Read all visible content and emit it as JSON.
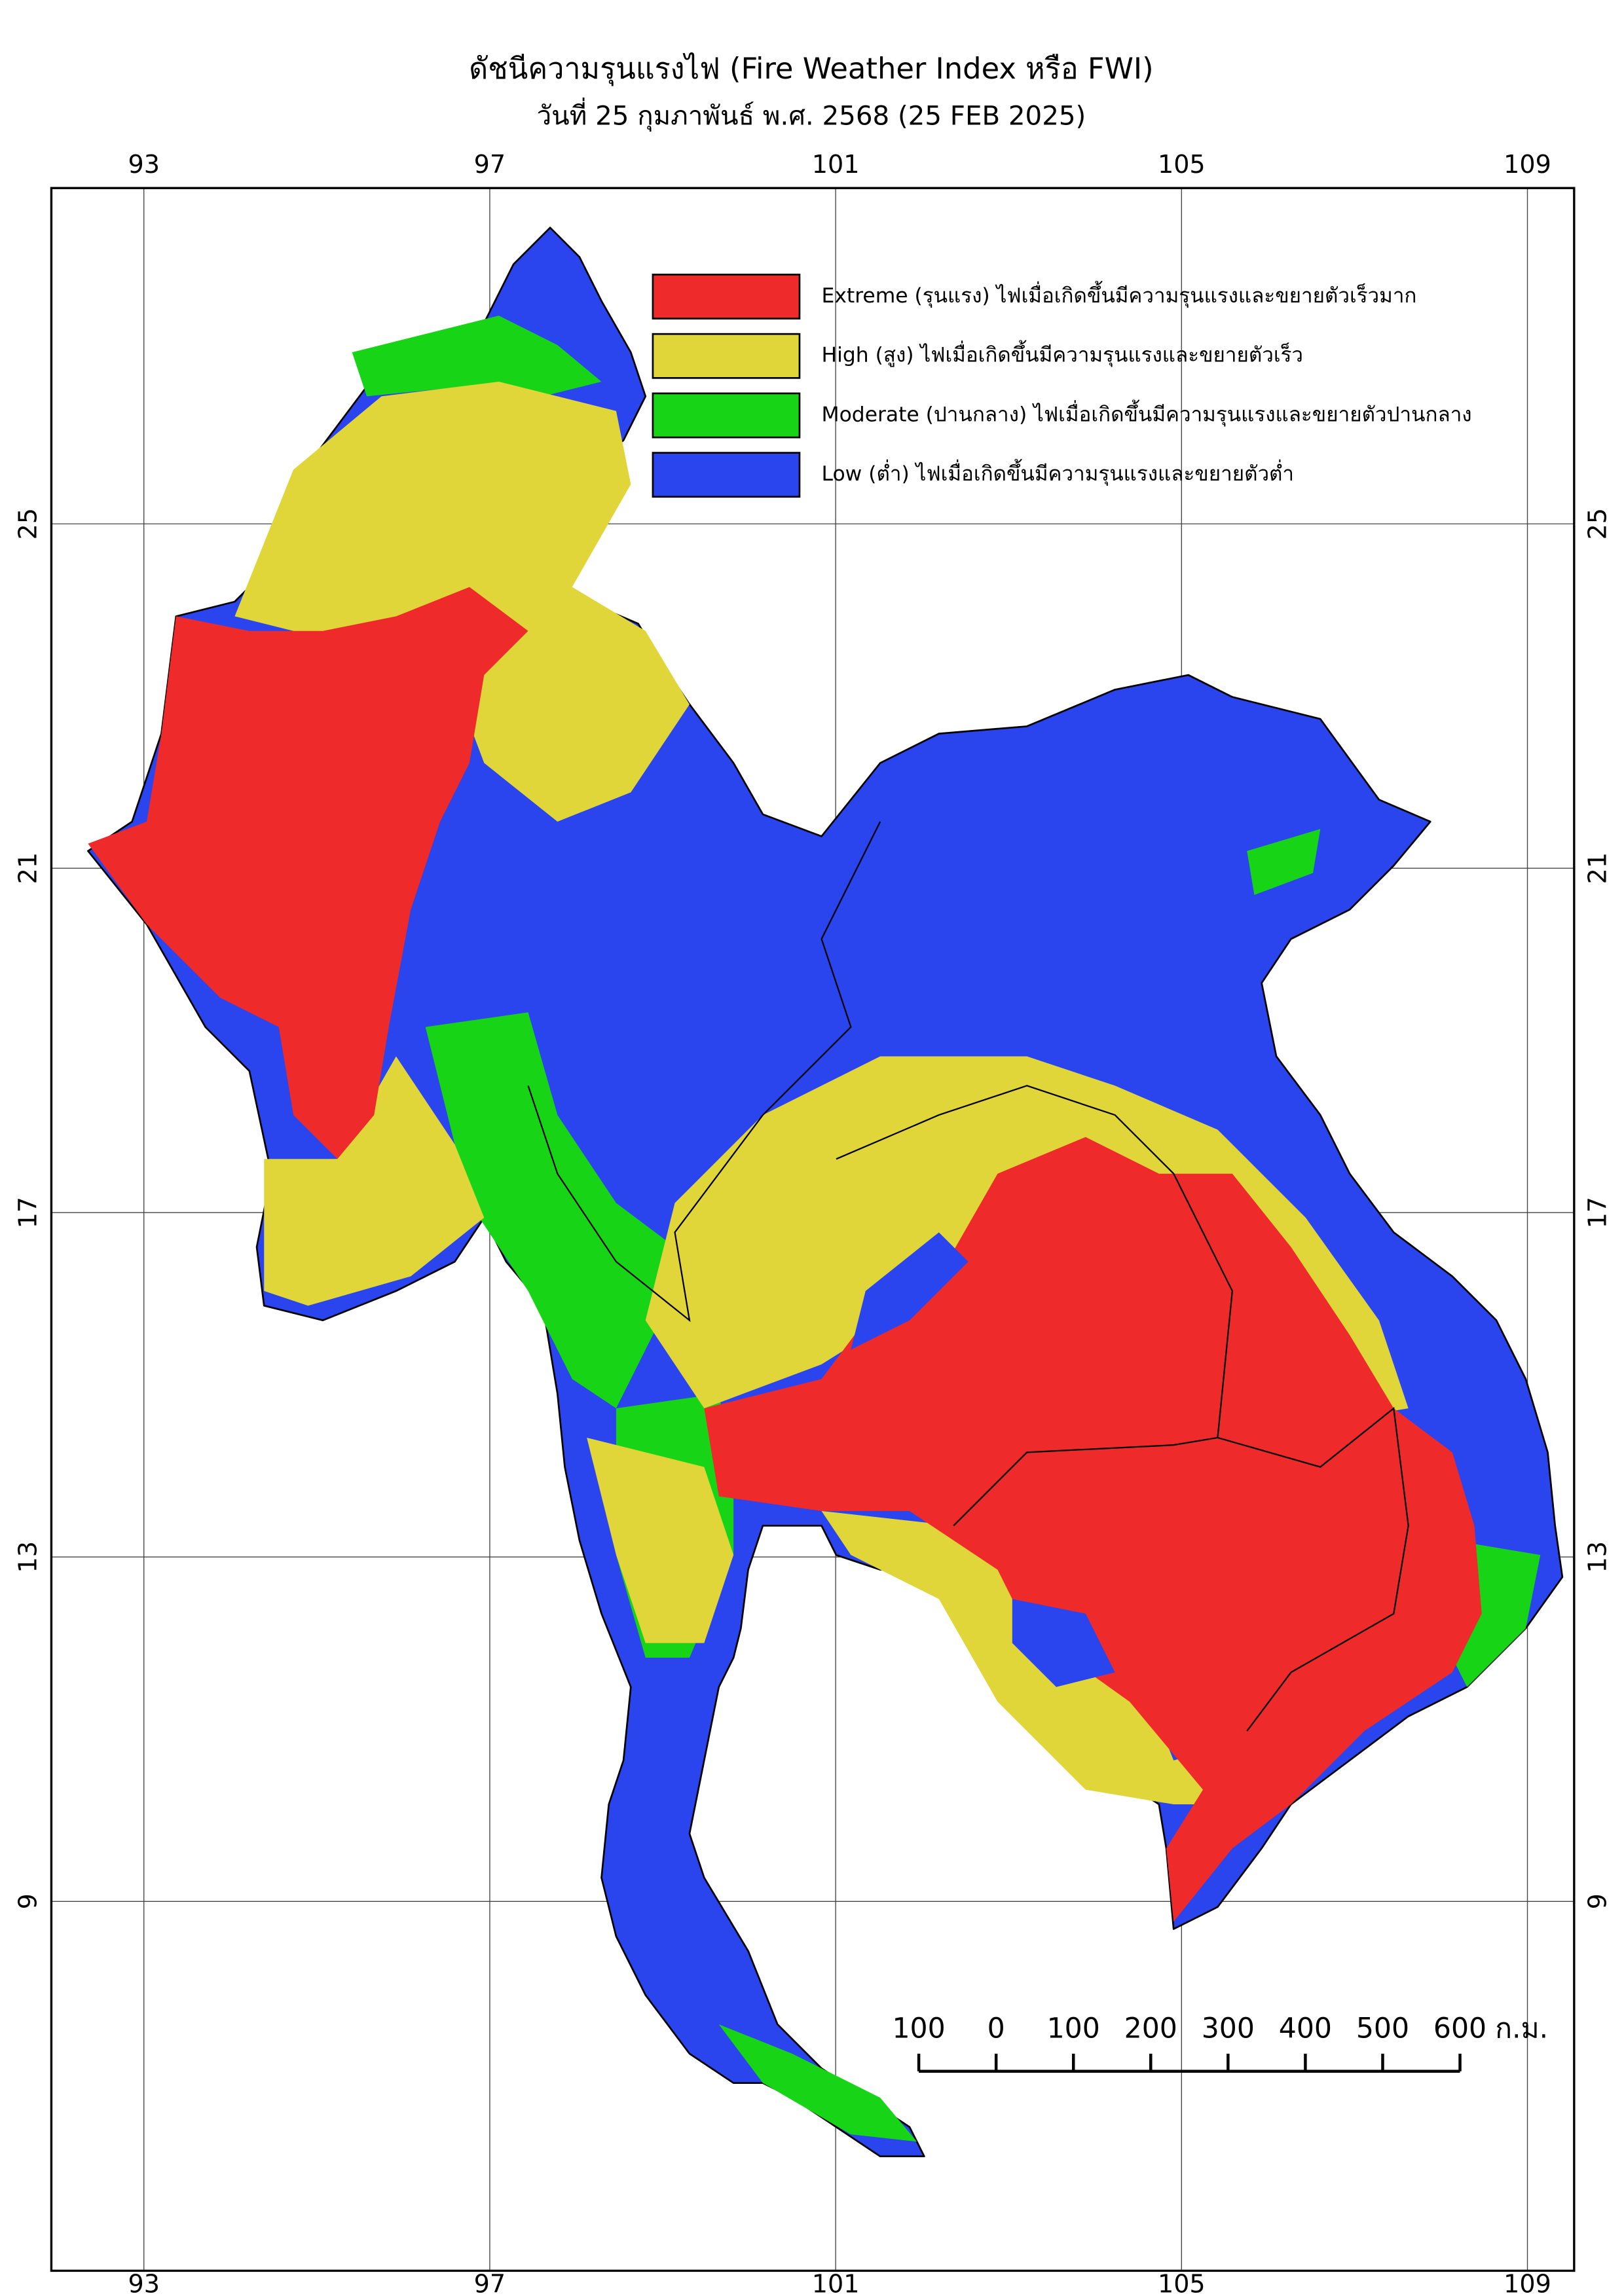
{
  "header": {
    "title": "ดัชนีความรุนแรงไฟ (Fire Weather Index หรือ FWI)",
    "subtitle": "วันที่ 25 กุมภาพันธ์ พ.ศ. 2568 (25 FEB 2025)"
  },
  "map": {
    "xlim": [
      91.93,
      109.54
    ],
    "ylim": [
      4.71,
      28.9
    ],
    "xticks": [
      93,
      97,
      101,
      105,
      109
    ],
    "yticks": [
      9,
      13,
      17,
      21,
      25
    ],
    "grid": true
  },
  "legend": [
    {
      "label": "Extreme (รุนแรง) ไฟเมื่อเกิดขึ้นมีความรุนแรงและขยายตัวเร็วมาก",
      "color": "#ee2a2a"
    },
    {
      "label": "High (สูง) ไฟเมื่อเกิดขึ้นมีความรุนแรงและขยายตัวเร็ว",
      "color": "#e0d63a"
    },
    {
      "label": "Moderate (ปานกลาง) ไฟเมื่อเกิดขึ้นมีความรุนแรงและขยายตัวปานกลาง",
      "color": "#17d417"
    },
    {
      "label": "Low (ต่ำ) ไฟเมื่อเกิดขึ้นมีความรุนแรงและขยายตัวต่ำ",
      "color": "#2a44ee"
    }
  ],
  "scale_bar": {
    "ticks": [
      {
        "value": -100,
        "label": "100"
      },
      0,
      100,
      200,
      300,
      400,
      500,
      600
    ],
    "unit": "ก.ม."
  }
}
